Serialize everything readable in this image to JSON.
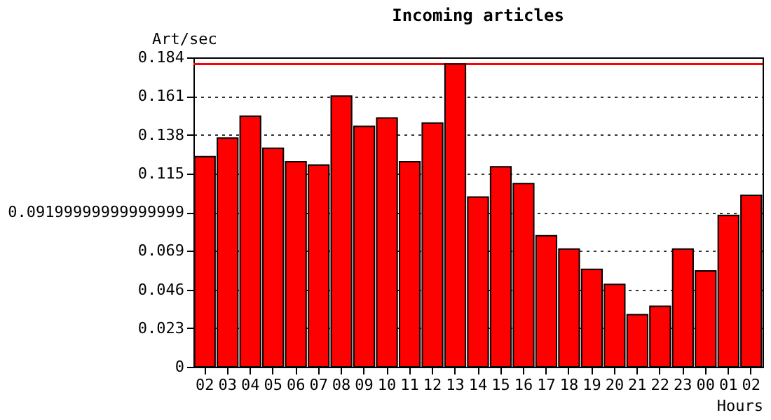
{
  "chart_data": {
    "type": "bar",
    "title": "Incoming articles",
    "ylabel": "Art/sec",
    "xlabel": "Hours",
    "categories": [
      "02",
      "03",
      "04",
      "05",
      "06",
      "07",
      "08",
      "09",
      "10",
      "11",
      "12",
      "13",
      "14",
      "15",
      "16",
      "17",
      "18",
      "19",
      "20",
      "21",
      "22",
      "23",
      "00",
      "01",
      "02"
    ],
    "values": [
      0.125,
      0.136,
      0.149,
      0.13,
      0.122,
      0.12,
      0.161,
      0.143,
      0.148,
      0.122,
      0.145,
      0.18,
      0.101,
      0.119,
      0.109,
      0.078,
      0.07,
      0.058,
      0.049,
      0.031,
      0.036,
      0.07,
      0.057,
      0.09,
      0.102
    ],
    "color": "#ff0000",
    "ylim": [
      0,
      0.184
    ],
    "yticks": [
      0,
      0.023,
      0.046,
      0.069,
      {
        "value": 0.092,
        "label": "0.09199999999999999"
      },
      0.115,
      0.138,
      0.161,
      0.184
    ],
    "grid": "y",
    "line_style": "dotted",
    "ref_lines": [
      {
        "axis": "y",
        "value": 0.18,
        "color": "#ff0000"
      }
    ]
  }
}
